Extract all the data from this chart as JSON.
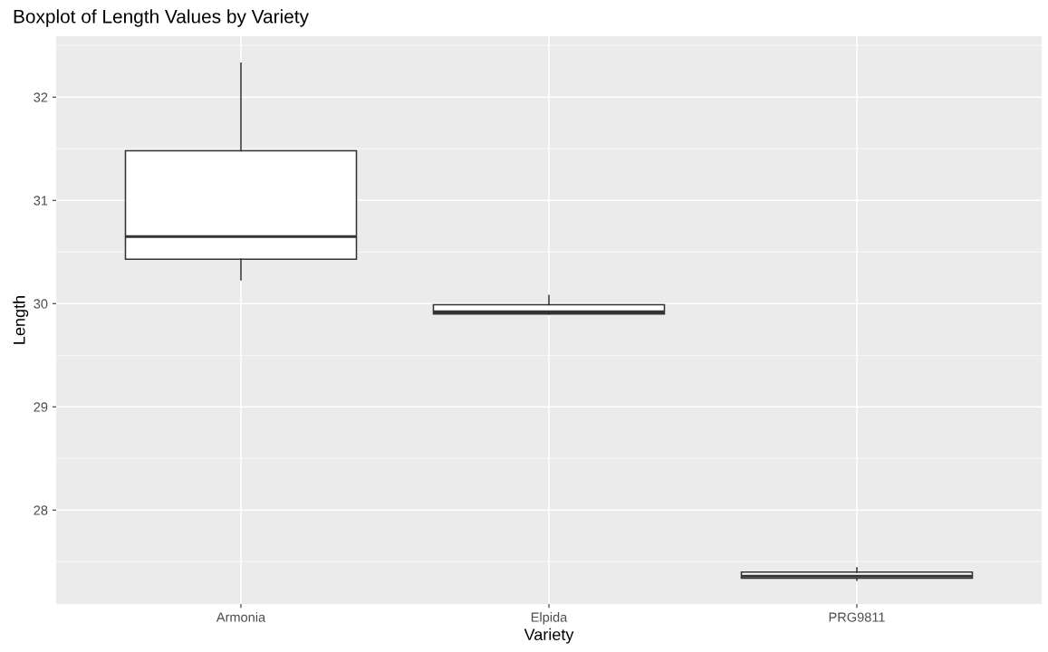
{
  "chart_data": {
    "type": "box",
    "title": "Boxplot of Length Values by Variety",
    "xlabel": "Variety",
    "ylabel": "Length",
    "categories": [
      "Armonia",
      "Elpida",
      "PRG9811"
    ],
    "boxes": [
      {
        "low": 30.23,
        "q1": 30.43,
        "median": 30.65,
        "q3": 31.48,
        "high": 32.33
      },
      {
        "low": 29.9,
        "q1": 29.9,
        "median": 29.92,
        "q3": 29.99,
        "high": 30.08
      },
      {
        "low": 27.32,
        "q1": 27.34,
        "median": 27.36,
        "q3": 27.4,
        "high": 27.44
      }
    ],
    "ylim": [
      27.09,
      32.59
    ],
    "yticks": [
      28,
      29,
      30,
      31,
      32
    ],
    "grid": true
  }
}
